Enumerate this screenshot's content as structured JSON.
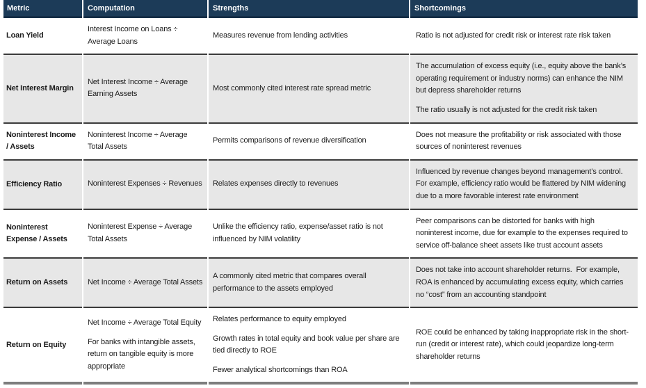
{
  "table": {
    "columns": [
      "Metric",
      "Computation",
      "Strengths",
      "Shortcomings"
    ],
    "rows": [
      {
        "metric": "Loan Yield",
        "computation": [
          "Interest Income on Loans ÷ Average Loans"
        ],
        "strengths": [
          "Measures revenue from lending activities"
        ],
        "shortcomings": [
          "Ratio is not adjusted for credit risk or interest rate risk taken"
        ]
      },
      {
        "metric": "Net Interest Margin",
        "computation": [
          "Net Interest Income ÷ Average Earning Assets"
        ],
        "strengths": [
          "Most commonly cited interest rate spread metric"
        ],
        "shortcomings": [
          "The accumulation of excess equity (i.e., equity above the bank’s operating requirement or industry norms) can enhance the NIM but depress shareholder returns",
          "The ratio usually is not adjusted for the credit risk taken"
        ]
      },
      {
        "metric": "Noninterest Income / Assets",
        "computation": [
          "Noninterest Income ÷ Average Total Assets"
        ],
        "strengths": [
          "Permits comparisons of revenue diversification"
        ],
        "shortcomings": [
          "Does not measure the profitability or risk associated with those sources of noninterest revenues"
        ]
      },
      {
        "metric": "Efficiency Ratio",
        "computation": [
          "Noninterest Expenses ÷ Revenues"
        ],
        "strengths": [
          "Relates expenses directly to revenues"
        ],
        "shortcomings": [
          "Influenced by revenue changes beyond management’s control.  For example, efficiency ratio would be flattered by NIM widening due to a more favorable interest rate environment"
        ]
      },
      {
        "metric": "Noninterest Expense / Assets",
        "computation": [
          "Noninterest Expense ÷ Average Total Assets"
        ],
        "strengths": [
          "Unlike the efficiency ratio, expense/asset ratio is not influenced by NIM volatility"
        ],
        "shortcomings": [
          "Peer comparisons can be distorted for banks with high noninterest income, due for example to the expenses required to service off-balance sheet assets like trust account assets"
        ]
      },
      {
        "metric": "Return on Assets",
        "computation": [
          "Net Income ÷ Average Total Assets"
        ],
        "strengths": [
          "A commonly cited metric that compares overall performance to the assets employed"
        ],
        "shortcomings": [
          "Does not take into account shareholder returns.  For example, ROA is enhanced by accumulating excess equity, which carries no “cost” from an accounting standpoint"
        ]
      },
      {
        "metric": "Return on Equity",
        "computation": [
          "Net Income ÷ Average Total Equity",
          "For banks with intangible assets, return on tangible equity is more appropriate"
        ],
        "strengths": [
          "Relates performance to equity employed",
          "Growth rates in total equity and book value per share are tied directly to ROE",
          "Fewer analytical shortcomings than ROA"
        ],
        "shortcomings": [
          "ROE could be enhanced by taking inappropriate risk in the short-run (credit or interest rate), which could jeopardize long-term shareholder returns"
        ]
      }
    ]
  },
  "colors": {
    "header_bg": "#1c3b58",
    "header_border": "#152e47",
    "header_text": "#ffffff",
    "row_alt_bg": "#e7e7e7",
    "row_separator": "#3b3b3b",
    "bottom_border": "#7d7d7d",
    "body_text": "#1c1c1c"
  }
}
